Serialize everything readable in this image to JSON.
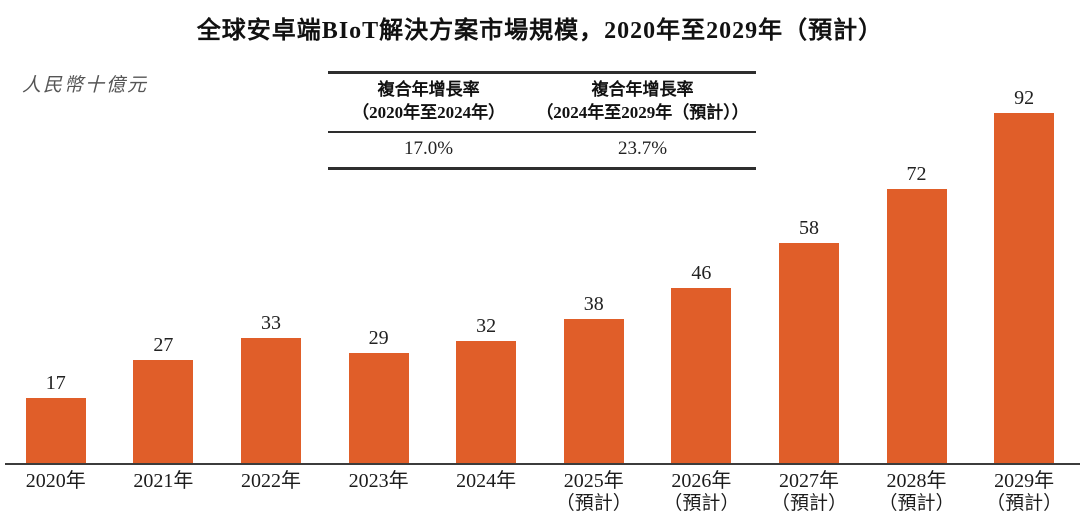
{
  "chart_data": {
    "type": "bar",
    "title": "全球安卓端BIoT解決方案市場規模，2020年至2029年（預計）",
    "unit_label": "人民幣十億元",
    "categories": [
      "2020年",
      "2021年",
      "2022年",
      "2023年",
      "2024年",
      "2025年",
      "2026年",
      "2027年",
      "2028年",
      "2029年"
    ],
    "category_sublabels": [
      "",
      "",
      "",
      "",
      "",
      "（預計）",
      "（預計）",
      "（預計）",
      "（預計）",
      "（預計）"
    ],
    "values": [
      17,
      27,
      33,
      29,
      32,
      38,
      46,
      58,
      72,
      92
    ],
    "value_labels": [
      "17",
      "27",
      "33",
      "29",
      "32",
      "38",
      "46",
      "58",
      "72",
      "92"
    ],
    "bar_color": "#E05E29",
    "axis_color": "#3c3c3c",
    "ylim": [
      0,
      96
    ],
    "grid": false,
    "legend": "none",
    "value_labels_position": "above-bars"
  },
  "cagr_table": {
    "columns": [
      {
        "header_line1": "複合年增長率",
        "header_line2": "（2020年至2024年）",
        "value": "17.0%"
      },
      {
        "header_line1": "複合年增長率",
        "header_line2": "（2024年至2029年（預計））",
        "value": "23.7%"
      }
    ]
  }
}
